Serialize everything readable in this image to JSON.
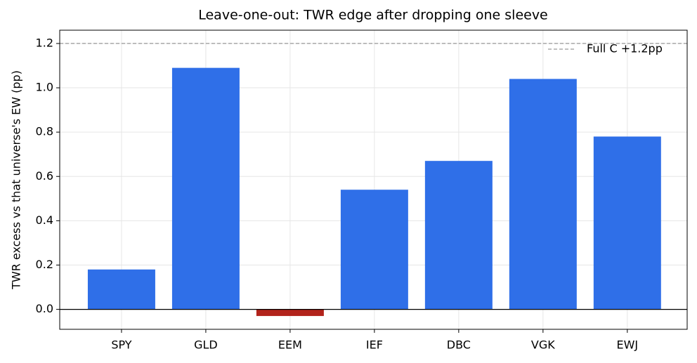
{
  "chart_data": {
    "type": "bar",
    "title": "Leave-one-out: TWR edge after dropping one sleeve",
    "y_label": "TWR excess vs that universe's EW (pp)",
    "categories": [
      "SPY",
      "GLD",
      "EEM",
      "IEF",
      "DBC",
      "VGK",
      "EWJ"
    ],
    "values": [
      0.18,
      1.09,
      -0.03,
      0.54,
      0.67,
      1.04,
      0.78
    ],
    "colors": [
      "#2f6fe8",
      "#2f6fe8",
      "#b2231b",
      "#2f6fe8",
      "#2f6fe8",
      "#2f6fe8",
      "#2f6fe8"
    ],
    "ylim": [
      -0.09,
      1.26
    ],
    "yticks": [
      {
        "value": 0,
        "label": "0.0"
      },
      0.2,
      0.4,
      0.6,
      0.8,
      {
        "value": 1,
        "label": "1.0"
      },
      1.2
    ],
    "grid": true,
    "reference_line": {
      "value": 1.2,
      "label": "Full C +1.2pp",
      "color": "#808080"
    },
    "legend": "upper right"
  }
}
